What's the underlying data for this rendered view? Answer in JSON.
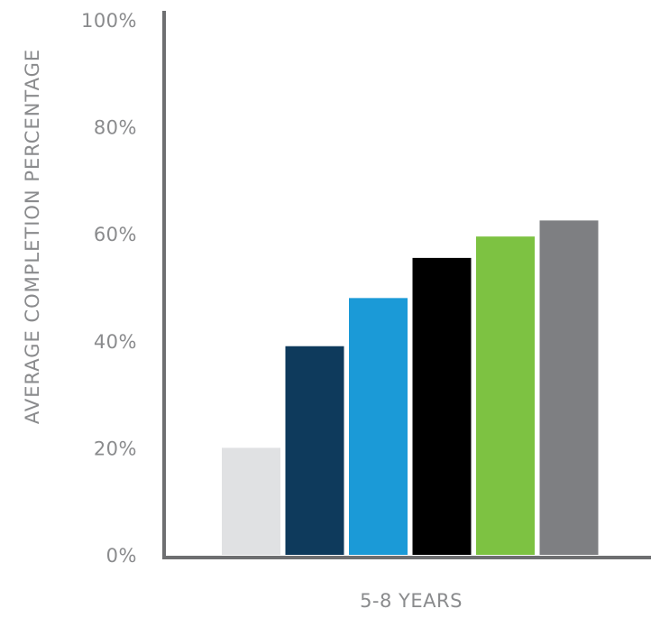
{
  "chart_data": {
    "type": "bar",
    "title": "",
    "ylabel": "AVERAGE COMPLETION PERCENTAGE",
    "xlabel": "",
    "categories": [
      "5-8 YEARS"
    ],
    "ylim": [
      0,
      100
    ],
    "yticks": [
      0,
      20,
      40,
      60,
      80,
      100
    ],
    "ytick_labels": [
      "0%",
      "20%",
      "40%",
      "60%",
      "80%",
      "100%"
    ],
    "grid": false,
    "series": [
      {
        "values": [
          20
        ],
        "color": "#e0e1e3"
      },
      {
        "values": [
          39
        ],
        "color": "#0e3a5c"
      },
      {
        "values": [
          48
        ],
        "color": "#1b9ad7"
      },
      {
        "values": [
          55.5
        ],
        "color": "#000000"
      },
      {
        "values": [
          59.5
        ],
        "color": "#7dc242"
      },
      {
        "values": [
          62.5
        ],
        "color": "#7e7f82"
      }
    ]
  }
}
